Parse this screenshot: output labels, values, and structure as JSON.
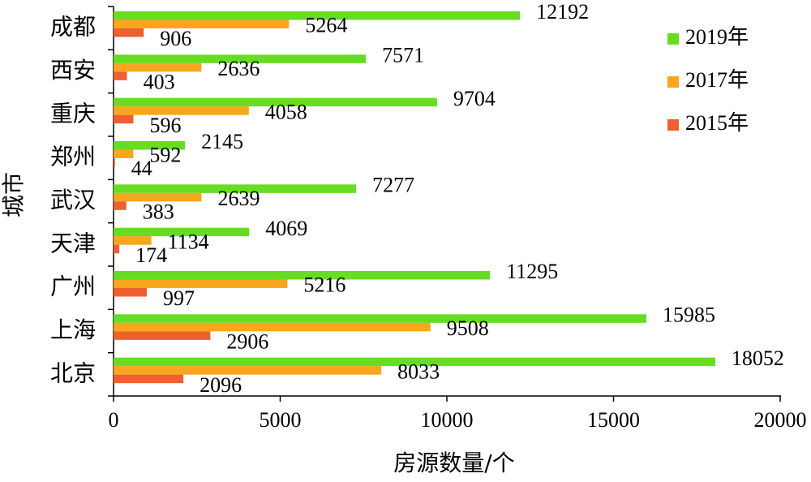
{
  "chart_data": {
    "type": "bar",
    "orientation": "horizontal",
    "x_label": "房源数量/个",
    "y_label": "城市",
    "categories": [
      "成都",
      "西安",
      "重庆",
      "郑州",
      "武汉",
      "天津",
      "广州",
      "上海",
      "北京"
    ],
    "series": [
      {
        "name": "2019年",
        "color": "#66dd22",
        "values": [
          12192,
          7571,
          9704,
          2145,
          7277,
          4069,
          11295,
          15985,
          18052
        ]
      },
      {
        "name": "2017年",
        "color": "#f8a61e",
        "values": [
          5264,
          2636,
          4058,
          592,
          2639,
          1134,
          5216,
          9508,
          8033
        ]
      },
      {
        "name": "2015年",
        "color": "#ee6030",
        "values": [
          906,
          403,
          596,
          44,
          383,
          174,
          997,
          2906,
          2096
        ]
      }
    ],
    "xlim": [
      0,
      20000
    ],
    "xticks": [
      0,
      5000,
      10000,
      15000,
      20000
    ],
    "legend": "top-right",
    "grid": false
  }
}
